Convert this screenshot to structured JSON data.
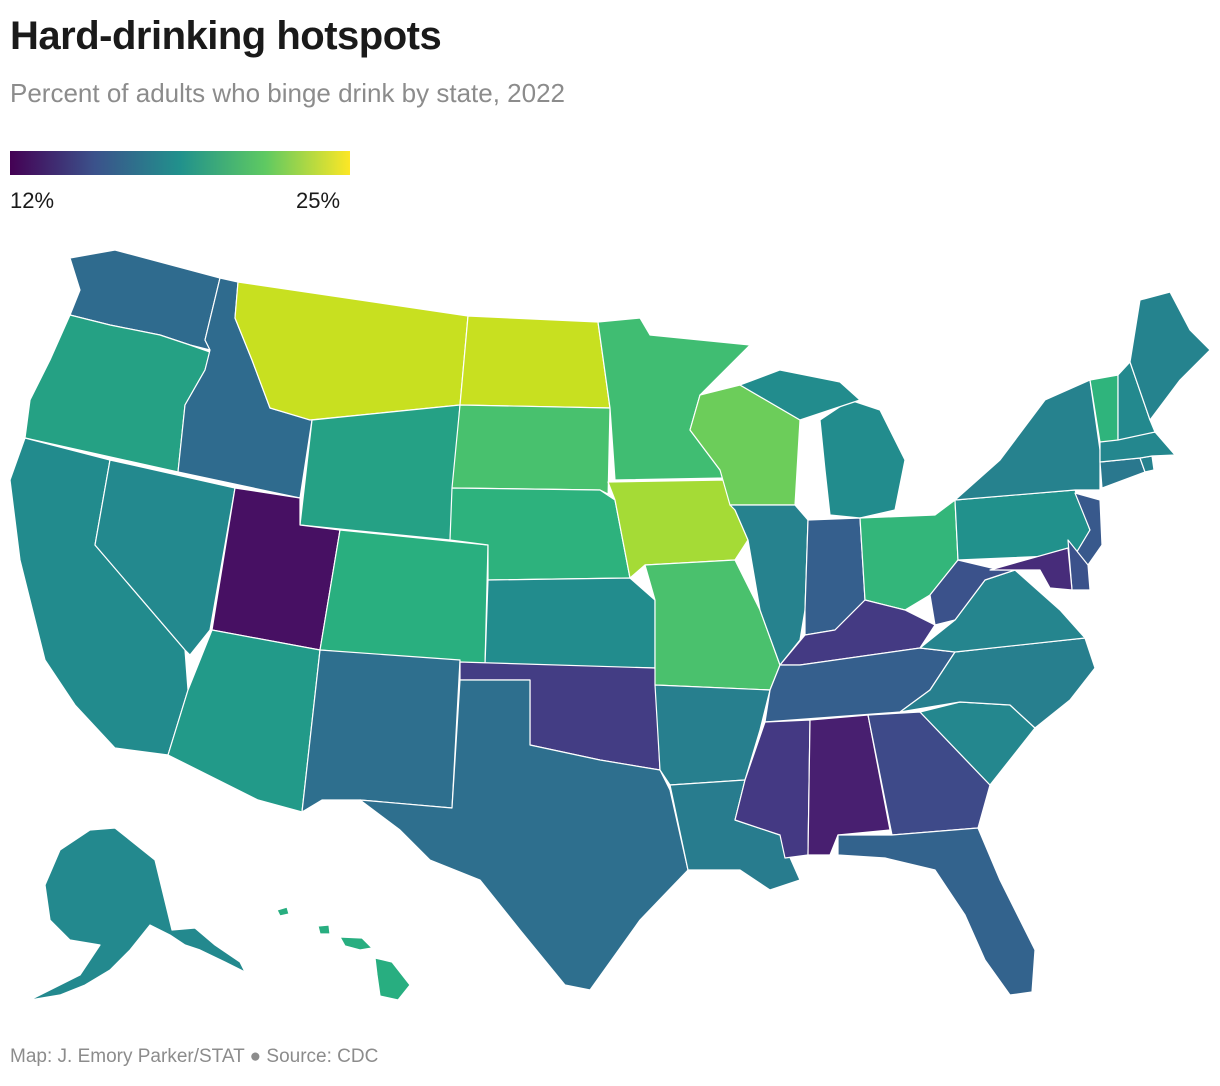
{
  "header": {
    "title": "Hard-drinking hotspots",
    "subtitle": "Percent of adults who binge drink by state, 2022"
  },
  "legend": {
    "min_label": "12%",
    "max_label": "25%",
    "min_value": 12,
    "max_value": 25,
    "scale": "viridis",
    "colors": [
      "#440154",
      "#3b528b",
      "#21918c",
      "#5ec962",
      "#fde725"
    ]
  },
  "footer": {
    "credit": "Map: J. Emory Parker/STAT ● Source: CDC"
  },
  "map_data": {
    "type": "choropleth",
    "region": "United States",
    "unit": "percent of adults",
    "states": {
      "WA": {
        "color": "#2f6b8e"
      },
      "OR": {
        "color": "#25a184"
      },
      "CA": {
        "color": "#228b8d"
      },
      "NV": {
        "color": "#23898e"
      },
      "ID": {
        "color": "#2f6b8e"
      },
      "MT": {
        "color": "#c8e020"
      },
      "WY": {
        "color": "#25a185"
      },
      "UT": {
        "color": "#471063"
      },
      "AZ": {
        "color": "#229a89"
      },
      "CO": {
        "color": "#29af7f"
      },
      "NM": {
        "color": "#2e6f8e"
      },
      "ND": {
        "color": "#c8e020"
      },
      "SD": {
        "color": "#48c16e"
      },
      "NE": {
        "color": "#2db27d"
      },
      "KS": {
        "color": "#228c8d"
      },
      "OK": {
        "color": "#433d84"
      },
      "TX": {
        "color": "#2e6f8e"
      },
      "MN": {
        "color": "#40bd72"
      },
      "IA": {
        "color": "#a5db36"
      },
      "MO": {
        "color": "#4ac16d"
      },
      "AR": {
        "color": "#277f8e"
      },
      "LA": {
        "color": "#287c8e"
      },
      "WI": {
        "color": "#6ccd5a"
      },
      "IL": {
        "color": "#26828e"
      },
      "MI": {
        "color": "#228c8d"
      },
      "IN": {
        "color": "#355f8d"
      },
      "OH": {
        "color": "#33b67a"
      },
      "KY": {
        "color": "#443a83"
      },
      "TN": {
        "color": "#355f8d"
      },
      "MS": {
        "color": "#443983"
      },
      "AL": {
        "color": "#481f70"
      },
      "GA": {
        "color": "#3e4a89"
      },
      "FL": {
        "color": "#33638d"
      },
      "SC": {
        "color": "#24878e"
      },
      "NC": {
        "color": "#277f8e"
      },
      "VA": {
        "color": "#25858e"
      },
      "WV": {
        "color": "#3b528b"
      },
      "PA": {
        "color": "#21918c"
      },
      "NY": {
        "color": "#26828e"
      },
      "NJ": {
        "color": "#38598c"
      },
      "DE": {
        "color": "#3b528b"
      },
      "MD": {
        "color": "#472c7a"
      },
      "CT": {
        "color": "#2a788e"
      },
      "RI": {
        "color": "#26828e"
      },
      "MA": {
        "color": "#24878e"
      },
      "VT": {
        "color": "#2fb47c"
      },
      "NH": {
        "color": "#23898e"
      },
      "ME": {
        "color": "#25838e"
      },
      "AK": {
        "color": "#23898e"
      },
      "HI": {
        "color": "#28ae80"
      }
    }
  }
}
